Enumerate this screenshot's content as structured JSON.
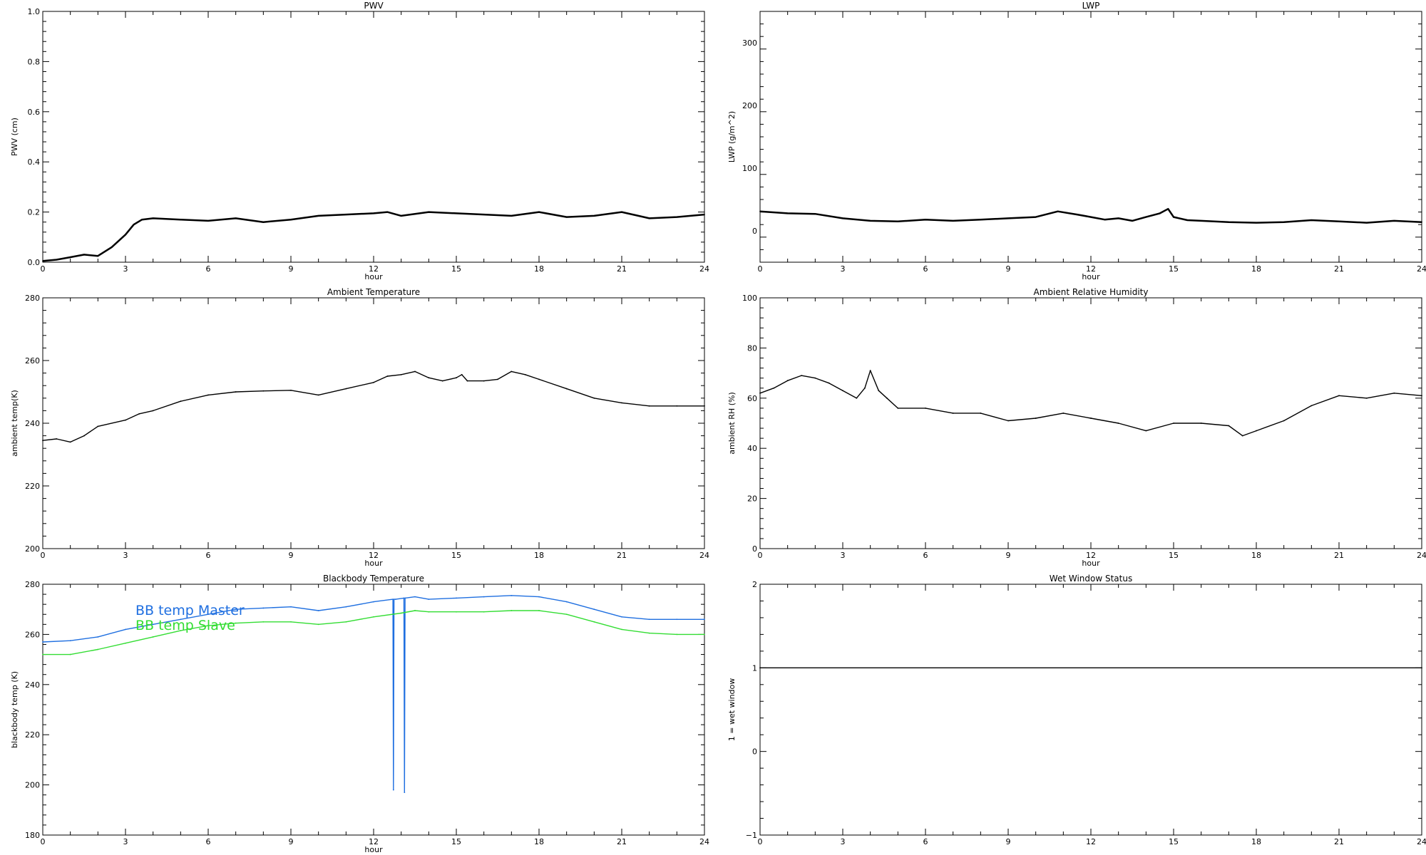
{
  "chart_data": [
    {
      "id": "pwv",
      "type": "line",
      "title": "PWV",
      "xlabel": "hour",
      "ylabel": "PWV (cm)",
      "xlim": [
        0,
        24
      ],
      "ylim": [
        0,
        1.0
      ],
      "xticks": [
        0,
        3,
        6,
        9,
        12,
        15,
        18,
        21,
        24
      ],
      "yticks": [
        0.0,
        0.2,
        0.4,
        0.6,
        0.8,
        1.0
      ],
      "ytick_labels": [
        "0.0",
        "0.2",
        "0.4",
        "0.6",
        "0.8",
        "1.0"
      ],
      "grid": false,
      "series": [
        {
          "color": "#000000",
          "x": [
            0,
            0.5,
            1,
            1.5,
            2,
            2.5,
            3,
            3.3,
            3.6,
            4,
            5,
            6,
            7,
            8,
            9,
            10,
            11,
            12,
            12.5,
            13,
            14,
            15,
            16,
            17,
            18,
            19,
            20,
            21,
            22,
            23,
            24
          ],
          "y": [
            0.005,
            0.01,
            0.02,
            0.03,
            0.025,
            0.06,
            0.11,
            0.15,
            0.17,
            0.175,
            0.17,
            0.165,
            0.175,
            0.16,
            0.17,
            0.185,
            0.19,
            0.195,
            0.2,
            0.185,
            0.2,
            0.195,
            0.19,
            0.185,
            0.2,
            0.18,
            0.185,
            0.2,
            0.175,
            0.18,
            0.19
          ]
        }
      ]
    },
    {
      "id": "lwp",
      "type": "line",
      "title": "LWP",
      "xlabel": "hour",
      "ylabel": "LWP (g/m^2)",
      "xlim": [
        0,
        24
      ],
      "ylim": [
        -50,
        350
      ],
      "xticks": [
        0,
        3,
        6,
        9,
        12,
        15,
        18,
        21,
        24
      ],
      "yticks": [
        0,
        100,
        200,
        300
      ],
      "ytick_labels": [
        "0",
        "100",
        "200",
        "300"
      ],
      "grid": false,
      "series": [
        {
          "color": "#000000",
          "x": [
            0,
            1,
            2,
            3,
            4,
            5,
            6,
            7,
            8,
            9,
            10,
            10.8,
            11.5,
            12,
            12.5,
            13,
            13.5,
            14,
            14.5,
            14.8,
            15,
            15.5,
            16,
            17,
            18,
            19,
            20,
            21,
            22,
            23,
            24
          ],
          "y": [
            31,
            28,
            27,
            20,
            16,
            15,
            18,
            16,
            18,
            20,
            22,
            31,
            26,
            22,
            18,
            20,
            16,
            22,
            28,
            35,
            22,
            17,
            16,
            14,
            13,
            14,
            17,
            15,
            13,
            16,
            14
          ]
        }
      ]
    },
    {
      "id": "ambient-temp",
      "type": "line",
      "title": "Ambient Temperature",
      "xlabel": "hour",
      "ylabel": "ambient temp(K)",
      "xlim": [
        0,
        24
      ],
      "ylim": [
        200,
        280
      ],
      "xticks": [
        0,
        3,
        6,
        9,
        12,
        15,
        18,
        21,
        24
      ],
      "yticks": [
        200,
        220,
        240,
        260,
        280
      ],
      "ytick_labels": [
        "200",
        "220",
        "240",
        "260",
        "280"
      ],
      "grid": false,
      "series": [
        {
          "color": "#000000",
          "x": [
            0,
            0.5,
            1,
            1.5,
            2,
            3,
            3.5,
            4,
            5,
            6,
            7,
            8,
            9,
            10,
            11,
            12,
            12.5,
            13,
            13.5,
            14,
            14.5,
            15,
            15.2,
            15.4,
            16,
            16.5,
            17,
            17.5,
            18,
            19,
            20,
            21,
            22,
            23,
            24
          ],
          "y": [
            234.5,
            235,
            234,
            236,
            239,
            241,
            243,
            244,
            247,
            249,
            250,
            250.3,
            250.5,
            249,
            251,
            253,
            255,
            255.5,
            256.5,
            254.5,
            253.5,
            254.5,
            255.5,
            253.5,
            253.5,
            254,
            256.5,
            255.5,
            254,
            251,
            248,
            246.5,
            245.5,
            245.5,
            245.5
          ]
        }
      ]
    },
    {
      "id": "ambient-rh",
      "type": "line",
      "title": "Ambient Relative Humidity",
      "xlabel": "hour",
      "ylabel": "ambient RH (%)",
      "xlim": [
        0,
        24
      ],
      "ylim": [
        0,
        100
      ],
      "xticks": [
        0,
        3,
        6,
        9,
        12,
        15,
        18,
        21,
        24
      ],
      "yticks": [
        0,
        20,
        40,
        60,
        80,
        100
      ],
      "ytick_labels": [
        "0",
        "20",
        "40",
        "60",
        "80",
        "100"
      ],
      "grid": false,
      "series": [
        {
          "color": "#000000",
          "x": [
            0,
            0.5,
            1,
            1.5,
            2,
            2.5,
            3,
            3.5,
            3.8,
            4,
            4.3,
            4.6,
            5,
            6,
            7,
            8,
            9,
            10,
            11,
            12,
            13,
            14,
            15,
            16,
            17,
            17.5,
            18,
            19,
            20,
            21,
            22,
            23,
            24
          ],
          "y": [
            62,
            64,
            67,
            69,
            68,
            66,
            63,
            60,
            64,
            71,
            63,
            60,
            56,
            56,
            54,
            54,
            51,
            52,
            54,
            52,
            50,
            47,
            50,
            50,
            49,
            45,
            47,
            51,
            57,
            61,
            60,
            62,
            61
          ]
        }
      ]
    },
    {
      "id": "blackbody-temp",
      "type": "line",
      "title": "Blackbody Temperature",
      "xlabel": "hour",
      "ylabel": "blackbody temp (K)",
      "xlim": [
        0,
        24
      ],
      "ylim": [
        180,
        280
      ],
      "xticks": [
        0,
        3,
        6,
        9,
        12,
        15,
        18,
        21,
        24
      ],
      "yticks": [
        180,
        200,
        220,
        240,
        260,
        280
      ],
      "ytick_labels": [
        "180",
        "200",
        "220",
        "240",
        "260",
        "280"
      ],
      "grid": false,
      "legend": "top-left",
      "series": [
        {
          "name": "BB temp Master",
          "color": "#1f6fe0",
          "x": [
            0,
            1,
            2,
            3,
            4,
            5,
            6,
            7,
            8,
            9,
            10,
            11,
            12,
            12.7,
            12.72,
            12.74,
            12.8,
            13.1,
            13.12,
            13.14,
            13.5,
            14,
            15,
            16,
            17,
            18,
            19,
            20,
            21,
            22,
            23,
            24
          ],
          "y": [
            257,
            257.5,
            259,
            262,
            264,
            266,
            268,
            270,
            270.5,
            271,
            269.5,
            271,
            273,
            274,
            198,
            274,
            274,
            274.5,
            197,
            274.5,
            275,
            274,
            274.5,
            275,
            275.5,
            275,
            273,
            270,
            267,
            266,
            266,
            266
          ]
        },
        {
          "name": "BB temp Slave",
          "color": "#33dd33",
          "x": [
            0,
            1,
            2,
            3,
            4,
            5,
            6,
            7,
            8,
            9,
            10,
            11,
            12,
            13,
            13.5,
            14,
            15,
            16,
            17,
            18,
            19,
            20,
            21,
            22,
            23,
            24
          ],
          "y": [
            252,
            252,
            254,
            256.5,
            259,
            261.5,
            263.5,
            264.5,
            265,
            265,
            264,
            265,
            267,
            268.5,
            269.5,
            269,
            269,
            269,
            269.5,
            269.5,
            268,
            265,
            262,
            260.5,
            260,
            260
          ]
        }
      ]
    },
    {
      "id": "wet-window",
      "type": "line",
      "title": "Wet Window Status",
      "xlabel": "",
      "ylabel": "1 = wet window",
      "xlim": [
        0,
        24
      ],
      "ylim": [
        -1,
        2
      ],
      "xticks": [
        0,
        3,
        6,
        9,
        12,
        15,
        18,
        21,
        24
      ],
      "yticks": [
        -1,
        0,
        1,
        2
      ],
      "ytick_labels": [
        "−1",
        "0",
        "1",
        "2"
      ],
      "grid": false,
      "series": [
        {
          "color": "#000000",
          "x": [
            0,
            24
          ],
          "y": [
            1,
            1
          ]
        }
      ]
    }
  ]
}
